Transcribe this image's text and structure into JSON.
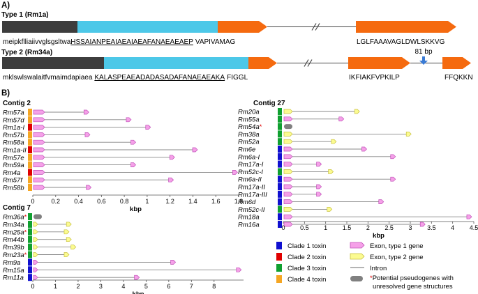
{
  "panel_a": {
    "label": "A)",
    "type1": {
      "title": "Type 1 (Rm1a)",
      "signal_seq": "meipkflliaiivvglsgsltwa",
      "mature_seq": "HSSAIANPEAIAEAIAEAFANAEAEAEP",
      "tail_seq": "VAPIVAMAG",
      "second_exon_seq": "LGLFAAAVAGLDWLSKKVG"
    },
    "type2": {
      "title": "Type 2 (Rm34a)",
      "signal_seq": "mklswlswalaitfvmaimdapiaea",
      "mature_seq": "KALASPEAEADADASADAFANAEAEAKA",
      "tail_seq": "FIGGL",
      "second_exon_seq": "IKFIAKFVPKILP",
      "third_exon_seq": "FFQKKN",
      "gap_label": "81 bp"
    }
  },
  "panel_b": {
    "label": "B)",
    "axis_label": "kbp",
    "colors": {
      "clade1": "#1010d0",
      "clade2": "#e00000",
      "clade3": "#10a030",
      "clade4": "#f5a623",
      "exon1_fill": "#f5a0e8",
      "exon1_stroke": "#c050b8",
      "exon2_fill": "#fbfb90",
      "exon2_stroke": "#c8c040",
      "intron": "#888888",
      "pseudo": "#808080"
    },
    "contig2": {
      "title": "Contig 2",
      "xlim": [
        0,
        1.8
      ],
      "ticks": [
        "0",
        "0.2",
        "0.4",
        "0.6",
        "0.8",
        "1",
        "1.2",
        "1.4",
        "1.6",
        "1.8"
      ],
      "genes": [
        {
          "name": "Rm57a",
          "clade": 4,
          "type": 1,
          "length": 0.49
        },
        {
          "name": "Rm57d",
          "clade": 4,
          "type": 1,
          "length": 0.86
        },
        {
          "name": "Rm1a-I",
          "clade": 2,
          "type": 1,
          "length": 1.03
        },
        {
          "name": "Rm57b",
          "clade": 4,
          "type": 1,
          "length": 0.5
        },
        {
          "name": "Rm58a",
          "clade": 4,
          "type": 1,
          "length": 0.9
        },
        {
          "name": "Rm1a-II",
          "clade": 2,
          "type": 1,
          "length": 1.44
        },
        {
          "name": "Rm57e",
          "clade": 4,
          "type": 1,
          "length": 1.24
        },
        {
          "name": "Rm59a",
          "clade": 4,
          "type": 1,
          "length": 0.9
        },
        {
          "name": "Rm4a",
          "clade": 2,
          "type": 1,
          "length": 1.79
        },
        {
          "name": "Rm57f",
          "clade": 4,
          "type": 1,
          "length": 1.23
        },
        {
          "name": "Rm58b",
          "clade": 4,
          "type": 1,
          "length": 0.51
        }
      ]
    },
    "contig7": {
      "title": "Contig 7",
      "xlim": [
        0,
        9.3
      ],
      "ticks": [
        "0",
        "1",
        "2",
        "3",
        "4",
        "5",
        "6",
        "7",
        "8"
      ],
      "genes": [
        {
          "name": "Rm36a",
          "star": "*",
          "clade": 3,
          "type": 0,
          "length": 0.25
        },
        {
          "name": "Rm34a",
          "clade": 3,
          "type": 2,
          "length": 1.7
        },
        {
          "name": "Rm25a",
          "star": "*",
          "clade": 3,
          "type": 2,
          "length": 1.6
        },
        {
          "name": "Rm44b",
          "clade": 3,
          "type": 2,
          "length": 1.7
        },
        {
          "name": "Rm39b",
          "clade": 3,
          "type": 2,
          "length": 1.9
        },
        {
          "name": "Rm23a",
          "star": "*",
          "clade": 3,
          "type": 2,
          "length": 1.6
        },
        {
          "name": "Rm9a",
          "clade": 1,
          "type": 1,
          "length": 6.3
        },
        {
          "name": "Rm15a",
          "clade": 1,
          "type": 1,
          "length": 9.2
        },
        {
          "name": "Rm11a",
          "clade": 1,
          "type": 1,
          "length": 4.7
        }
      ]
    },
    "contig27": {
      "title": "Contig 27",
      "xlim": [
        0,
        4.5
      ],
      "ticks": [
        "0",
        "0.5",
        "1",
        "1.5",
        "2",
        "2.5",
        "3",
        "3.5",
        "4",
        "4.5"
      ],
      "genes": [
        {
          "name": "Rm20a",
          "clade": 3,
          "type": 2,
          "length": 1.8
        },
        {
          "name": "Rm55a",
          "clade": 3,
          "type": 1,
          "length": 1.43
        },
        {
          "name": "Rm54a",
          "star": "*",
          "clade": 3,
          "type": 0,
          "length": 0.18
        },
        {
          "name": "Rm38a",
          "clade": 3,
          "type": 2,
          "length": 3.02
        },
        {
          "name": "Rm52a",
          "clade": 3,
          "type": 2,
          "length": 1.25
        },
        {
          "name": "Rm6e",
          "clade": 1,
          "type": 1,
          "length": 1.97
        },
        {
          "name": "Rm6a-I",
          "clade": 1,
          "type": 1,
          "length": 2.65
        },
        {
          "name": "Rm17a-I",
          "clade": 1,
          "type": 1,
          "length": 0.9
        },
        {
          "name": "Rm52c-I",
          "clade": 3,
          "type": 2,
          "length": 1.18
        },
        {
          "name": "Rm6a-II",
          "clade": 1,
          "type": 1,
          "length": 2.65
        },
        {
          "name": "Rm17a-II",
          "clade": 1,
          "type": 1,
          "length": 0.9
        },
        {
          "name": "Rm17a-III",
          "clade": 1,
          "type": 1,
          "length": 0.9
        },
        {
          "name": "Rm6d",
          "clade": 1,
          "type": 1,
          "length": 2.37
        },
        {
          "name": "Rm52c-II",
          "clade": 3,
          "type": 2,
          "length": 1.15
        },
        {
          "name": "Rm18a",
          "clade": 1,
          "type": 1,
          "length": 4.45
        },
        {
          "name": "Rm16a",
          "clade": 1,
          "type": 1,
          "length": 3.35
        }
      ]
    },
    "legend": {
      "clade1": "Clade 1 toxin",
      "clade2": "Clade 2 toxin",
      "clade3": "Clade 3 toxin",
      "clade4": "Clade 4 toxin",
      "exon_type1": "Exon, type 1 gene",
      "exon_type2": "Exon, type 2 gene",
      "intron": "Intron",
      "pseudo_star": "*",
      "pseudo_line1": "Potential pseudogenes with",
      "pseudo_line2": "unresolved gene structures"
    }
  }
}
